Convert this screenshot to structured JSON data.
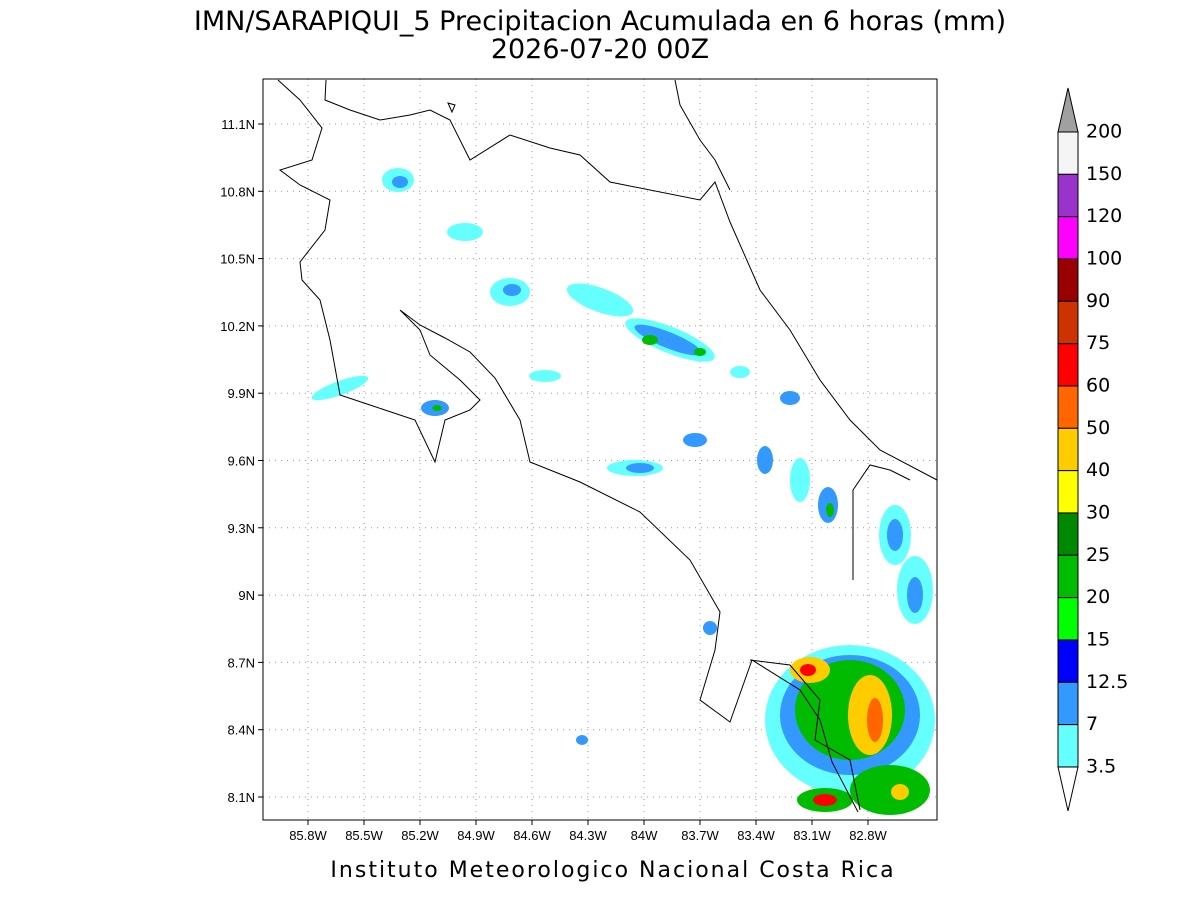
{
  "title": "IMN/SARAPIQUI_5 Precipitacion Acumulada en 6 horas (mm)",
  "subtitle": "2026-07-20 00Z",
  "footer": "Instituto Meteorologico Nacional Costa Rica",
  "map": {
    "xticks": [
      "85.8W",
      "85.5W",
      "85.2W",
      "84.9W",
      "84.6W",
      "84.3W",
      "84W",
      "83.7W",
      "83.4W",
      "83.1W",
      "82.8W"
    ],
    "yticks": [
      "11.1N",
      "10.8N",
      "10.5N",
      "10.2N",
      "9.9N",
      "9.6N",
      "9.3N",
      "9N",
      "8.7N",
      "8.4N",
      "8.1N"
    ],
    "grid": true
  },
  "colorbar": {
    "labels": [
      "200",
      "150",
      "120",
      "100",
      "90",
      "75",
      "60",
      "50",
      "40",
      "30",
      "25",
      "20",
      "15",
      "12.5",
      "7",
      "3.5"
    ],
    "colors": [
      "#f5f5f5",
      "#9933cc",
      "#ff00ff",
      "#990000",
      "#cc3300",
      "#ff0000",
      "#ff6600",
      "#ffcc00",
      "#ffff00",
      "#008800",
      "#00bb00",
      "#00ff00",
      "#0000ff",
      "#3399ff",
      "#66ffff"
    ],
    "top_color": "#a0a0a0",
    "bottom_color": "#ffffff"
  }
}
